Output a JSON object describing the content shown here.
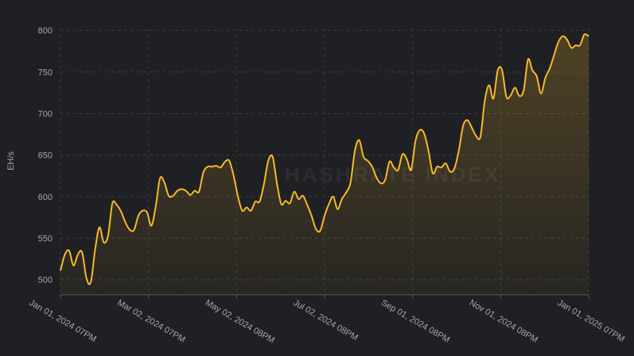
{
  "chart_data": {
    "type": "line",
    "ylabel": "EH/s",
    "watermark": "HASHRATE INDEX",
    "color": "#f7b928",
    "grid": true,
    "xlim": [
      "2024-01-01",
      "2025-01-01"
    ],
    "xticks": [
      {
        "value": "2024-01-01",
        "label": "Jan 01, 2024 07PM"
      },
      {
        "value": "2024-03-02",
        "label": "Mar 02, 2024 07PM"
      },
      {
        "value": "2024-05-02",
        "label": "May 02, 2024 08PM"
      },
      {
        "value": "2024-07-02",
        "label": "Jul 02, 2024 08PM"
      },
      {
        "value": "2024-09-01",
        "label": "Sep 01, 2024 08PM"
      },
      {
        "value": "2024-11-01",
        "label": "Nov 01, 2024 08PM"
      },
      {
        "value": "2025-01-01",
        "label": "Jan 01, 2025 07PM"
      }
    ],
    "ylim": [
      482,
      803
    ],
    "yticks": [
      500,
      550,
      600,
      650,
      700,
      750,
      800
    ],
    "x": [
      "2024-01-01",
      "2024-01-04",
      "2024-01-07",
      "2024-01-10",
      "2024-01-13",
      "2024-01-16",
      "2024-01-19",
      "2024-01-22",
      "2024-01-25",
      "2024-01-28",
      "2024-01-31",
      "2024-02-03",
      "2024-02-06",
      "2024-02-09",
      "2024-02-12",
      "2024-02-15",
      "2024-02-18",
      "2024-02-21",
      "2024-02-24",
      "2024-02-27",
      "2024-03-01",
      "2024-03-04",
      "2024-03-07",
      "2024-03-10",
      "2024-03-13",
      "2024-03-16",
      "2024-03-19",
      "2024-03-22",
      "2024-03-25",
      "2024-03-28",
      "2024-03-31",
      "2024-04-03",
      "2024-04-06",
      "2024-04-09",
      "2024-04-12",
      "2024-04-15",
      "2024-04-18",
      "2024-04-21",
      "2024-04-24",
      "2024-04-27",
      "2024-04-30",
      "2024-05-03",
      "2024-05-06",
      "2024-05-09",
      "2024-05-12",
      "2024-05-15",
      "2024-05-18",
      "2024-05-21",
      "2024-05-24",
      "2024-05-27",
      "2024-05-30",
      "2024-06-02",
      "2024-06-05",
      "2024-06-08",
      "2024-06-11",
      "2024-06-14",
      "2024-06-17",
      "2024-06-20",
      "2024-06-23",
      "2024-06-26",
      "2024-06-29",
      "2024-07-02",
      "2024-07-05",
      "2024-07-08",
      "2024-07-11",
      "2024-07-14",
      "2024-07-17",
      "2024-07-20",
      "2024-07-23",
      "2024-07-26",
      "2024-07-29",
      "2024-08-01",
      "2024-08-04",
      "2024-08-07",
      "2024-08-10",
      "2024-08-13",
      "2024-08-16",
      "2024-08-19",
      "2024-08-22",
      "2024-08-25",
      "2024-08-28",
      "2024-08-31",
      "2024-09-03",
      "2024-09-06",
      "2024-09-09",
      "2024-09-12",
      "2024-09-15",
      "2024-09-18",
      "2024-09-21",
      "2024-09-24",
      "2024-09-27",
      "2024-09-30",
      "2024-10-03",
      "2024-10-06",
      "2024-10-09",
      "2024-10-12",
      "2024-10-15",
      "2024-10-18",
      "2024-10-21",
      "2024-10-24",
      "2024-10-27",
      "2024-10-30",
      "2024-11-02",
      "2024-11-05",
      "2024-11-08",
      "2024-11-11",
      "2024-11-14",
      "2024-11-17",
      "2024-11-20",
      "2024-11-23",
      "2024-11-26",
      "2024-11-29",
      "2024-12-02",
      "2024-12-05",
      "2024-12-08",
      "2024-12-11",
      "2024-12-14",
      "2024-12-17",
      "2024-12-20",
      "2024-12-23",
      "2024-12-26",
      "2024-12-29",
      "2025-01-01"
    ],
    "values": [
      511,
      530,
      535,
      517,
      530,
      533,
      502,
      497,
      536,
      563,
      545,
      553,
      592,
      590,
      582,
      569,
      560,
      560,
      577,
      583,
      581,
      565,
      588,
      622,
      617,
      601,
      601,
      607,
      609,
      607,
      602,
      607,
      606,
      629,
      636,
      636,
      637,
      635,
      642,
      643,
      625,
      600,
      583,
      587,
      583,
      594,
      594,
      615,
      643,
      648,
      616,
      591,
      595,
      592,
      606,
      597,
      601,
      590,
      577,
      561,
      559,
      577,
      591,
      600,
      585,
      597,
      605,
      617,
      655,
      668,
      648,
      643,
      636,
      623,
      616,
      620,
      642,
      635,
      632,
      651,
      645,
      632,
      667,
      680,
      676,
      655,
      628,
      636,
      635,
      640,
      630,
      634,
      655,
      685,
      692,
      683,
      673,
      672,
      715,
      734,
      718,
      752,
      752,
      720,
      722,
      731,
      721,
      728,
      765,
      752,
      745,
      724,
      743,
      754,
      770,
      786,
      793,
      789,
      779,
      782,
      782,
      795,
      793
    ]
  }
}
